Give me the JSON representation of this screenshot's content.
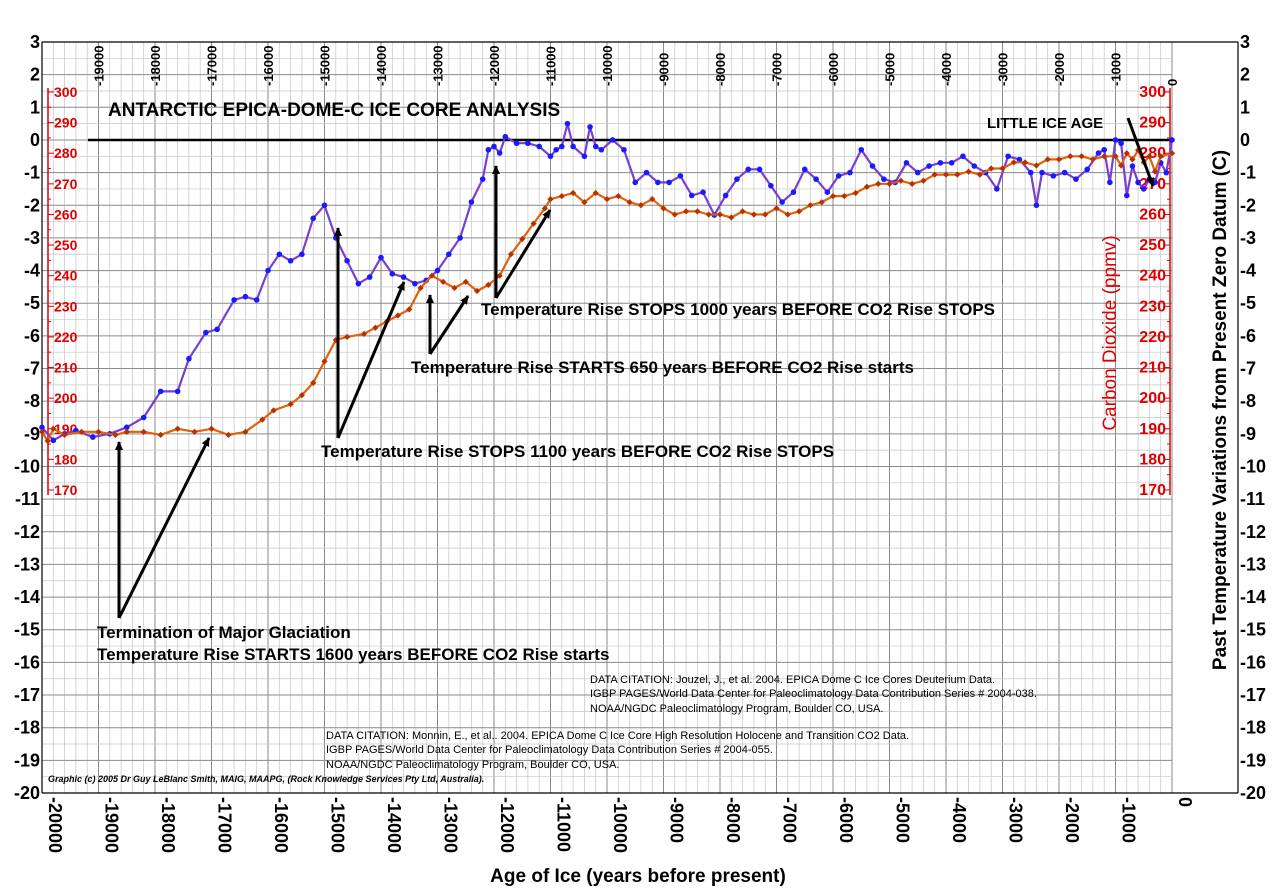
{
  "chart_data": {
    "type": "line",
    "title": "ANTARCTIC  EPICA-DOME-C  ICE  CORE  ANALYSIS",
    "xlabel": "Age of Ice (years before present)",
    "ylabel_left": "",
    "ylabel_right": "Past  Temperature   Variations  from  Present   Zero  Datum (C)",
    "ylabel_co2": "Carbon Dioxide (ppmv)",
    "xlim": [
      -20000,
      0
    ],
    "ylim_temp": [
      -20,
      3
    ],
    "ylim_co2": [
      170,
      300
    ],
    "grid": true,
    "x_ticks": [
      "-20000",
      "-19000",
      "-18000",
      "-17000",
      "-16000",
      "-15000",
      "-14000",
      "-13000",
      "-12000",
      "-11000",
      "-10000",
      "-9000",
      "-8000",
      "-7000",
      "-6000",
      "-5000",
      "-4000",
      "-3000",
      "-2000",
      "-1000",
      "0"
    ],
    "top_ticks": [
      "-19000",
      "-18000",
      "-17000",
      "-16000",
      "-15000",
      "-14000",
      "-13000",
      "-12000",
      "-11000",
      "-10000",
      "-9000",
      "-8000",
      "-7000",
      "-6000",
      "-5000",
      "-4000",
      "-3000",
      "-2000",
      "-1000",
      "0"
    ],
    "temp_ticks": [
      "3",
      "2",
      "1",
      "0",
      "-1",
      "-2",
      "-3",
      "-4",
      "-5",
      "-6",
      "-7",
      "-8",
      "-9",
      "-10",
      "-11",
      "-12",
      "-13",
      "-14",
      "-15",
      "-16",
      "-17",
      "-18",
      "-19",
      "-20"
    ],
    "co2_ticks": [
      "300",
      "290",
      "280",
      "270",
      "260",
      "250",
      "240",
      "230",
      "220",
      "210",
      "200",
      "190",
      "180",
      "170"
    ],
    "series": [
      {
        "name": "Temperature",
        "color": "#7a3fd0",
        "marker_color": "#1a1aff",
        "x": [
          -20000,
          -19800,
          -19600,
          -19400,
          -19100,
          -18800,
          -18500,
          -18200,
          -17900,
          -17600,
          -17400,
          -17100,
          -16900,
          -16600,
          -16400,
          -16200,
          -16000,
          -15800,
          -15600,
          -15400,
          -15200,
          -15000,
          -14800,
          -14600,
          -14400,
          -14200,
          -14000,
          -13800,
          -13600,
          -13400,
          -13200,
          -13000,
          -12800,
          -12600,
          -12400,
          -12200,
          -12100,
          -12000,
          -11900,
          -11800,
          -11600,
          -11400,
          -11200,
          -11000,
          -10900,
          -10800,
          -10700,
          -10600,
          -10400,
          -10300,
          -10200,
          -10100,
          -9900,
          -9700,
          -9500,
          -9300,
          -9100,
          -8900,
          -8700,
          -8500,
          -8300,
          -8100,
          -7900,
          -7700,
          -7500,
          -7300,
          -7100,
          -6900,
          -6700,
          -6500,
          -6300,
          -6100,
          -5900,
          -5700,
          -5500,
          -5300,
          -5100,
          -4900,
          -4700,
          -4500,
          -4300,
          -4100,
          -3900,
          -3700,
          -3500,
          -3300,
          -3100,
          -2900,
          -2700,
          -2500,
          -2400,
          -2300,
          -2100,
          -1900,
          -1700,
          -1500,
          -1300,
          -1200,
          -1100,
          -1000,
          -900,
          -800,
          -700,
          -600,
          -500,
          -400,
          -300,
          -200,
          -100,
          0
        ],
        "y": [
          -8.8,
          -9.2,
          -9.0,
          -8.9,
          -9.1,
          -9.0,
          -8.8,
          -8.5,
          -7.7,
          -7.7,
          -6.7,
          -5.9,
          -5.8,
          -4.9,
          -4.8,
          -4.9,
          -4.0,
          -3.5,
          -3.7,
          -3.5,
          -2.4,
          -2.0,
          -3.0,
          -3.7,
          -4.4,
          -4.2,
          -3.6,
          -4.1,
          -4.2,
          -4.4,
          -4.3,
          -4.0,
          -3.5,
          -3.0,
          -1.9,
          -1.2,
          -0.3,
          -0.2,
          -0.4,
          0.1,
          -0.1,
          -0.1,
          -0.2,
          -0.5,
          -0.3,
          -0.2,
          0.5,
          -0.2,
          -0.5,
          0.4,
          -0.2,
          -0.3,
          0.0,
          -0.3,
          -1.3,
          -1.0,
          -1.3,
          -1.3,
          -1.1,
          -1.7,
          -1.6,
          -2.3,
          -1.7,
          -1.2,
          -0.9,
          -0.9,
          -1.4,
          -1.9,
          -1.6,
          -0.9,
          -1.2,
          -1.6,
          -1.1,
          -1.0,
          -0.3,
          -0.8,
          -1.2,
          -1.3,
          -0.7,
          -1.0,
          -0.8,
          -0.7,
          -0.7,
          -0.5,
          -0.8,
          -1.0,
          -1.5,
          -0.5,
          -0.6,
          -1.0,
          -2.0,
          -1.0,
          -1.1,
          -1.0,
          -1.2,
          -0.9,
          -0.4,
          -0.3,
          -1.3,
          0.0,
          -0.1,
          -1.7,
          -0.8,
          -1.3,
          -1.5,
          -1.2,
          -1.3,
          -0.7,
          -1.0,
          0.0
        ]
      },
      {
        "name": "CO2",
        "color": "#e0620a",
        "marker_color": "#b83200",
        "x": [
          -20000,
          -19900,
          -19800,
          -19600,
          -19300,
          -19000,
          -18700,
          -18500,
          -18200,
          -17900,
          -17600,
          -17300,
          -17000,
          -16700,
          -16400,
          -16100,
          -15900,
          -15600,
          -15400,
          -15200,
          -15000,
          -14800,
          -14600,
          -14300,
          -14100,
          -13900,
          -13700,
          -13500,
          -13300,
          -13100,
          -12900,
          -12700,
          -12500,
          -12300,
          -12100,
          -11900,
          -11700,
          -11500,
          -11300,
          -11100,
          -11000,
          -10800,
          -10600,
          -10400,
          -10200,
          -10000,
          -9800,
          -9600,
          -9400,
          -9200,
          -9000,
          -8800,
          -8600,
          -8400,
          -8200,
          -8000,
          -7800,
          -7600,
          -7400,
          -7200,
          -7000,
          -6800,
          -6600,
          -6400,
          -6200,
          -6000,
          -5800,
          -5600,
          -5400,
          -5200,
          -5000,
          -4800,
          -4600,
          -4400,
          -4200,
          -4000,
          -3800,
          -3600,
          -3400,
          -3200,
          -3000,
          -2800,
          -2600,
          -2400,
          -2200,
          -2000,
          -1800,
          -1600,
          -1400,
          -1200,
          -1000,
          -900,
          -800,
          -700,
          -600,
          -500,
          -400,
          -300,
          -200,
          0
        ],
        "y": [
          189,
          186,
          190,
          188,
          189,
          189,
          188,
          189,
          189,
          188,
          190,
          189,
          190,
          188,
          189,
          193,
          196,
          198,
          201,
          205,
          212,
          219,
          220,
          221,
          223,
          225,
          227,
          229,
          236,
          240,
          238,
          236,
          238,
          235,
          237,
          240,
          247,
          252,
          257,
          262,
          265,
          266,
          267,
          264,
          267,
          265,
          266,
          264,
          263,
          265,
          262,
          260,
          261,
          261,
          260,
          260,
          259,
          261,
          260,
          260,
          262,
          260,
          261,
          263,
          264,
          266,
          266,
          267,
          269,
          270,
          270,
          271,
          270,
          271,
          273,
          273,
          273,
          274,
          273,
          275,
          275,
          277,
          277,
          276,
          278,
          278,
          279,
          279,
          278,
          279,
          279,
          276,
          280,
          278,
          281,
          277,
          279,
          274,
          279,
          280
        ]
      }
    ],
    "annotations": [
      {
        "text": "LITTLE ICE AGE"
      },
      {
        "text": "Temperature Rise STOPS 1000 years  BEFORE CO2 Rise STOPS"
      },
      {
        "text": "Temperature Rise STARTS 650 years  BEFORE CO2 Rise starts"
      },
      {
        "text": "Temperature Rise STOPS 1100 years  BEFORE CO2 Rise STOPS"
      },
      {
        "text": "Termination of Major Glaciation"
      },
      {
        "text": "Temperature Rise STARTS 1600 years  BEFORE CO2 Rise starts"
      }
    ],
    "citations": [
      "DATA CITATION: Jouzel, J., et al. 2004.  EPICA Dome C Ice Cores Deuterium Data.",
      "IGBP PAGES/World Data Center for Paleoclimatology Data Contribution Series # 2004-038.",
      "NOAA/NGDC Paleoclimatology Program, Boulder CO, USA.",
      "DATA CITATION: Monnin, E., et al.. 2004.  EPICA Dome C Ice Core High Resolution Holocene and Transition CO2 Data.",
      "IGBP PAGES/World Data Center for Paleoclimatology Data Contribution Series # 2004-055.",
      "NOAA/NGDC Paleoclimatology Program, Boulder CO, USA."
    ],
    "credit": "Graphic (c) 2005 Dr Guy LeBlanc Smith, MAIG, MAAPG, (Rock Knowledge Services Pty Ltd, Australia)."
  }
}
